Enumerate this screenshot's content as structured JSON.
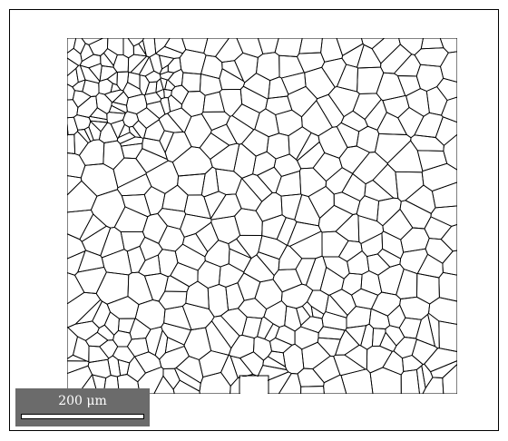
{
  "scale_bar": {
    "label": "200 μm",
    "box_color": "#6b6b6b",
    "bar_color": "#ffffff"
  },
  "grain_map": {
    "boundary_color": "#000000",
    "background_color": "#ffffff"
  }
}
